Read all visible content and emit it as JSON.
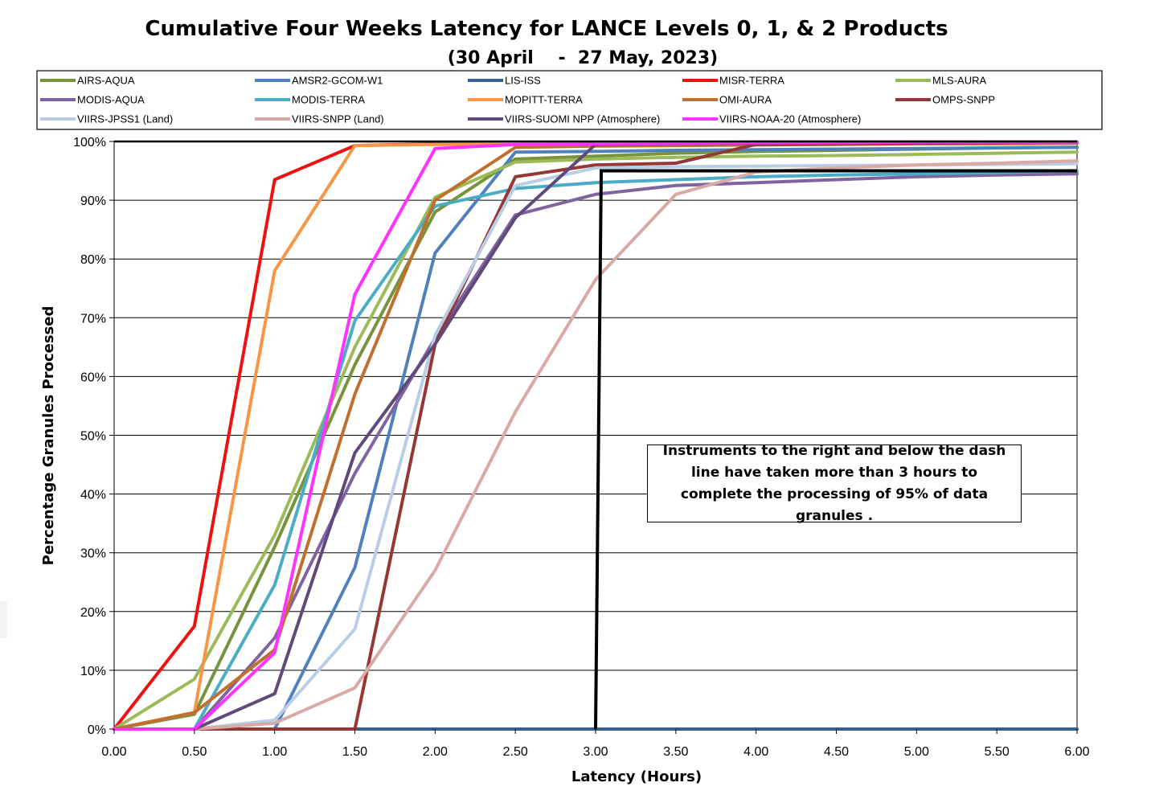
{
  "chart_data": {
    "type": "line",
    "title": "Cumulative Four Weeks Latency for LANCE Levels 0, 1, & 2 Products",
    "subtitle": "(30 April    -  27 May, 2023)",
    "xlabel": "Latency (Hours)",
    "ylabel": "Percentage Granules Processed",
    "xlim": [
      0,
      6
    ],
    "ylim": [
      0,
      100
    ],
    "x_ticks": [
      "0.00",
      "0.50",
      "1.00",
      "1.50",
      "2.00",
      "2.50",
      "3.00",
      "3.50",
      "4.00",
      "4.50",
      "5.00",
      "5.50",
      "6.00"
    ],
    "y_ticks": [
      "0%",
      "10%",
      "20%",
      "30%",
      "40%",
      "50%",
      "60%",
      "70%",
      "80%",
      "90%",
      "100%"
    ],
    "grid": "horizontal",
    "legend_position": "top",
    "x": [
      0,
      0.5,
      1,
      1.5,
      2,
      2.5,
      3,
      3.5,
      4,
      4.5,
      5,
      5.5,
      6
    ],
    "series": [
      {
        "name": "AIRS-AQUA",
        "color": "#77933c",
        "values": [
          0,
          2.5,
          31,
          62,
          88,
          97,
          97.5,
          98,
          98.3,
          98.5,
          98.7,
          98.9,
          99
        ]
      },
      {
        "name": "AMSR2-GCOM-W1",
        "color": "#4f81bd",
        "values": [
          0,
          0,
          0,
          27.5,
          81,
          98.2,
          98.3,
          98.5,
          98.6,
          98.7,
          98.8,
          98.9,
          99
        ]
      },
      {
        "name": "LIS-ISS",
        "color": "#376092",
        "values": [
          0,
          0,
          0,
          0,
          0,
          0,
          0,
          0,
          0,
          0,
          0,
          0,
          0
        ]
      },
      {
        "name": "MISR-TERRA",
        "color": "#ee1111",
        "values": [
          0,
          17.5,
          93.5,
          99.3,
          99.6,
          99.7,
          99.8,
          99.8,
          99.9,
          99.9,
          99.9,
          99.9,
          99.9
        ]
      },
      {
        "name": "MLS-AURA",
        "color": "#9bbb59",
        "values": [
          0,
          8.5,
          33,
          65,
          90.5,
          96.5,
          97,
          97.3,
          97.5,
          97.6,
          97.8,
          98,
          98.2
        ]
      },
      {
        "name": "MODIS-AQUA",
        "color": "#8064a2",
        "values": [
          0,
          0,
          15.5,
          43.5,
          66.5,
          87.5,
          91,
          92.5,
          93,
          93.5,
          94,
          94.3,
          94.5
        ]
      },
      {
        "name": "MODIS-TERRA",
        "color": "#4bacc6",
        "values": [
          0,
          0,
          24.5,
          69.5,
          89,
          92,
          93,
          93.5,
          94,
          94.3,
          94.5,
          94.7,
          95
        ]
      },
      {
        "name": "MOPITT-TERRA",
        "color": "#f79646",
        "values": [
          0,
          2.8,
          78,
          99.3,
          99.5,
          99.6,
          99.7,
          99.7,
          99.8,
          99.8,
          99.8,
          99.9,
          99.9
        ]
      },
      {
        "name": "OMI-AURA",
        "color": "#c0702e",
        "values": [
          0,
          2.8,
          13.5,
          57,
          90,
          99,
          99.2,
          99.3,
          99.4,
          99.5,
          99.6,
          99.6,
          99.7
        ]
      },
      {
        "name": "OMPS-SNPP",
        "color": "#953735",
        "values": [
          0,
          0,
          0,
          0,
          65.5,
          94,
          96,
          96.3,
          99.5,
          99.6,
          99.7,
          99.8,
          99.9
        ]
      },
      {
        "name": "VIIRS-JPSS1 (Land)",
        "color": "#b9cde5",
        "values": [
          0,
          0,
          1.5,
          17,
          67,
          92.5,
          95.5,
          95.7,
          95.8,
          95.9,
          96,
          96.1,
          96.2
        ]
      },
      {
        "name": "VIIRS-SNPP (Land)",
        "color": "#d9a9a6",
        "values": [
          0,
          0,
          1,
          7,
          27,
          54,
          76.5,
          91,
          94.8,
          95.5,
          96,
          96.3,
          96.7
        ]
      },
      {
        "name": "VIIRS-SUOMI NPP (Atmosphere)",
        "color": "#604a7b",
        "values": [
          0,
          0,
          6,
          47,
          65.5,
          87,
          99.5,
          99.6,
          99.7,
          99.8,
          99.8,
          99.9,
          99.9
        ]
      },
      {
        "name": "VIIRS-NOAA-20 (Atmosphere)",
        "color": "#ff33ff",
        "values": [
          0,
          0,
          13,
          74,
          98.8,
          99.5,
          99.6,
          99.7,
          99.8,
          99.8,
          99.9,
          99.9,
          99.9
        ]
      }
    ],
    "reference_line": {
      "x": 3,
      "y": 95
    },
    "annotation": "Instruments to the right and below the dash line have taken more than 3 hours to complete the processing of 95% of data granules ."
  }
}
